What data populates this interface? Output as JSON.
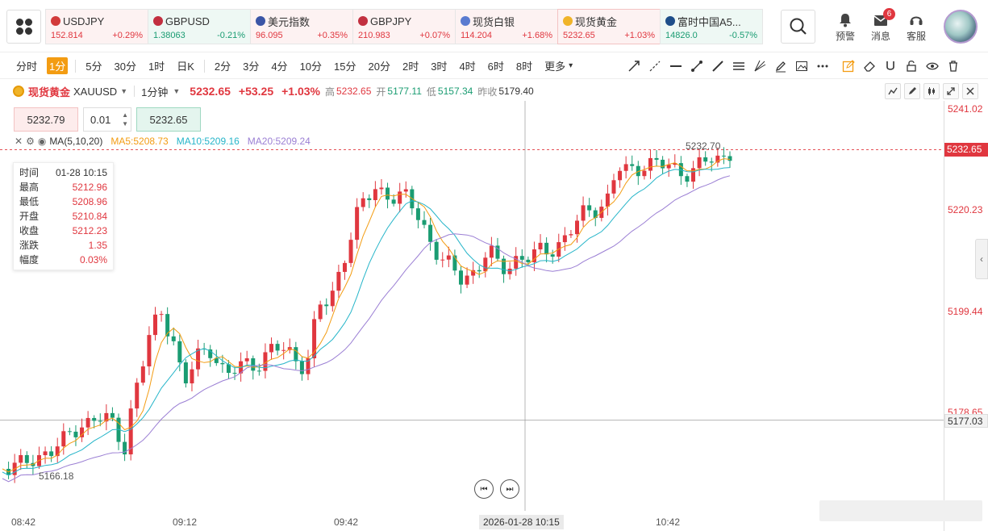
{
  "tickers": [
    {
      "name": "USDJPY",
      "price": "152.814",
      "change": "+0.29%",
      "dir": "up",
      "flag": "#d23a3a"
    },
    {
      "name": "GBPUSD",
      "price": "1.38063",
      "change": "-0.21%",
      "dir": "down",
      "flag": "#c23040"
    },
    {
      "name": "美元指数",
      "price": "96.095",
      "change": "+0.35%",
      "dir": "up",
      "flag": "#3b55a6"
    },
    {
      "name": "GBPJPY",
      "price": "210.983",
      "change": "+0.07%",
      "dir": "up",
      "flag": "#c23040"
    },
    {
      "name": "现货白银",
      "price": "114.204",
      "change": "+1.68%",
      "dir": "up",
      "flag": "#5a7bd0"
    },
    {
      "name": "现货黄金",
      "price": "5232.65",
      "change": "+1.03%",
      "dir": "up",
      "flag": "#f0b429"
    },
    {
      "name": "富时中国A5...",
      "price": "14826.0",
      "change": "-0.57%",
      "dir": "down",
      "flag": "#1d4e89"
    }
  ],
  "top_icons": {
    "alert_label": "预警",
    "message_label": "消息",
    "message_count": "6",
    "service_label": "客服"
  },
  "periods": [
    "分时",
    "1分",
    "5分",
    "30分",
    "1时",
    "日K",
    "2分",
    "3分",
    "4分",
    "10分",
    "15分",
    "20分",
    "2时",
    "3时",
    "4时",
    "6时",
    "8时",
    "更多"
  ],
  "active_period": "1分",
  "symbol": {
    "name": "现货黄金",
    "code": "XAUUSD",
    "interval": "1分钟",
    "price": "5232.65",
    "change": "+53.25",
    "change_pct": "+1.03%",
    "high_label": "高",
    "high": "5232.65",
    "open_label": "开",
    "open": "5177.11",
    "low_label": "低",
    "low": "5157.34",
    "prev_label": "昨收",
    "prev": "5179.40"
  },
  "trade": {
    "sell": "5232.79",
    "qty": "0.01",
    "buy": "5232.65"
  },
  "ma": {
    "label": "MA(5,10,20)",
    "ma5": "MA5:5208.73",
    "ma10": "MA10:5209.16",
    "ma20": "MA20:5209.24",
    "ma5_color": "#f39c12",
    "ma10_color": "#26b5c9",
    "ma20_color": "#9b7fd4"
  },
  "info": {
    "time_label": "时间",
    "time": "01-28 10:15",
    "high_label": "最高",
    "high": "5212.96",
    "low_label": "最低",
    "low": "5208.96",
    "open_label": "开盘",
    "open": "5210.84",
    "close_label": "收盘",
    "close": "5212.23",
    "chg_label": "涨跌",
    "chg": "1.35",
    "amp_label": "幅度",
    "amp": "0.03%"
  },
  "y_axis": {
    "ticks": [
      "5241.02",
      "5220.23",
      "5199.44",
      "5178.65"
    ],
    "current_price_tag": "5232.65",
    "crosshair_tag": "5177.03",
    "last_close_label": "5232.70",
    "min_label": "5166.18"
  },
  "x_axis": {
    "ticks": [
      "08:42",
      "09:12",
      "09:42",
      "10:42"
    ],
    "cursor": "2026-01-28 10:15"
  },
  "colors": {
    "up": "#e0373f",
    "down": "#1a9c72",
    "accent": "#f39c12"
  }
}
